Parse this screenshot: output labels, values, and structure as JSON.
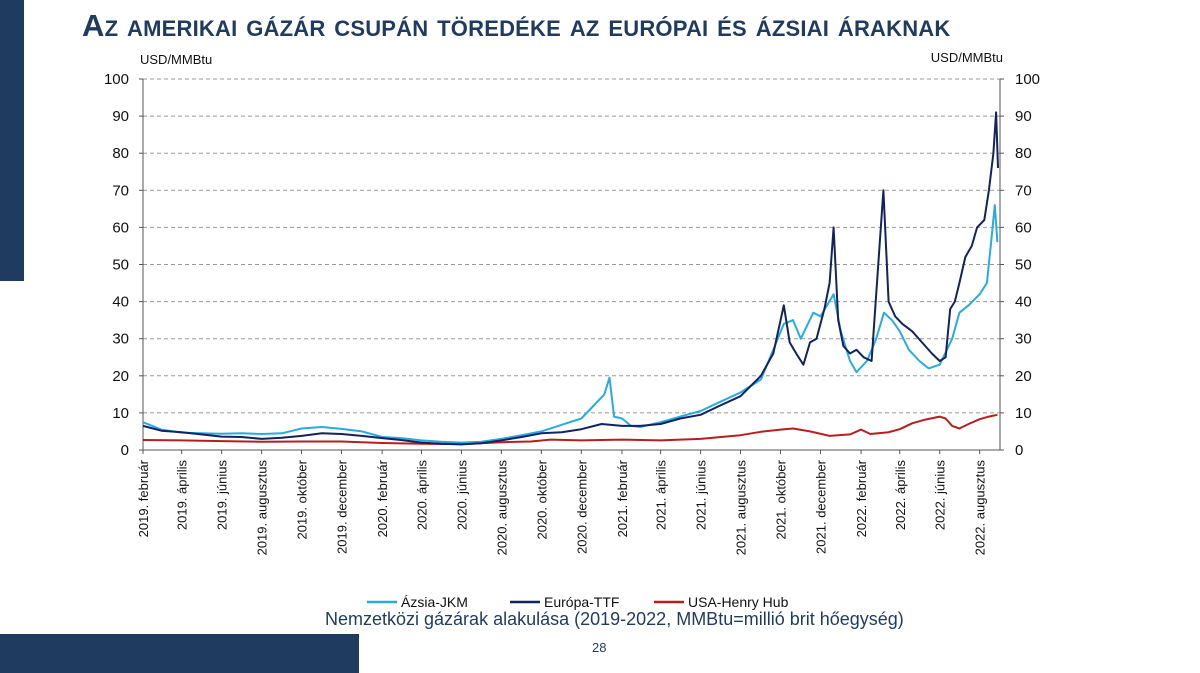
{
  "slide": {
    "title": "Az amerikai gázár csupán töredéke az európai és ázsiai áraknak",
    "caption": "Nemzetközi gázárak alakulása (2019-2022, MMBtu=millió brit hőegység)",
    "page_number": "28"
  },
  "colors": {
    "accent": "#1f3b5f",
    "jkm": "#29aae1",
    "ttf": "#12235e",
    "hh": "#b81e1e",
    "grid": "#9a9a9a"
  },
  "chart_data": {
    "type": "line",
    "ylabel_left": "USD/MMBtu",
    "ylabel_right": "USD/MMBtu",
    "ylim": [
      0,
      100
    ],
    "yticks": [
      0,
      10,
      20,
      30,
      40,
      50,
      60,
      70,
      80,
      90,
      100
    ],
    "grid": true,
    "legend_position": "bottom",
    "x_start": "2019-02-01",
    "x_end": "2022-09-01",
    "xtick_labels": [
      {
        "date": "2019-02-01",
        "label": "2019. február"
      },
      {
        "date": "2019-04-01",
        "label": "2019. április"
      },
      {
        "date": "2019-06-01",
        "label": "2019. június"
      },
      {
        "date": "2019-08-01",
        "label": "2019. augusztus"
      },
      {
        "date": "2019-10-01",
        "label": "2019. október"
      },
      {
        "date": "2019-12-01",
        "label": "2019. december"
      },
      {
        "date": "2020-02-01",
        "label": "2020. február"
      },
      {
        "date": "2020-04-01",
        "label": "2020. április"
      },
      {
        "date": "2020-06-01",
        "label": "2020. június"
      },
      {
        "date": "2020-08-01",
        "label": "2020. augusztus"
      },
      {
        "date": "2020-10-01",
        "label": "2020. október"
      },
      {
        "date": "2020-12-01",
        "label": "2020. december"
      },
      {
        "date": "2021-02-01",
        "label": "2021. február"
      },
      {
        "date": "2021-04-01",
        "label": "2021. április"
      },
      {
        "date": "2021-06-01",
        "label": "2021. június"
      },
      {
        "date": "2021-08-01",
        "label": "2021. augusztus"
      },
      {
        "date": "2021-10-01",
        "label": "2021. október"
      },
      {
        "date": "2021-12-01",
        "label": "2021. december"
      },
      {
        "date": "2022-02-01",
        "label": "2022. február"
      },
      {
        "date": "2022-04-01",
        "label": "2022. április"
      },
      {
        "date": "2022-06-01",
        "label": "2022. június"
      },
      {
        "date": "2022-08-01",
        "label": "2022. augusztus"
      }
    ],
    "series": [
      {
        "name": "Ázsia-JKM",
        "color": "#29aae1",
        "points": [
          [
            "2019-02-01",
            7.5
          ],
          [
            "2019-03-01",
            5.5
          ],
          [
            "2019-04-01",
            4.7
          ],
          [
            "2019-05-01",
            4.5
          ],
          [
            "2019-06-01",
            4.4
          ],
          [
            "2019-07-01",
            4.5
          ],
          [
            "2019-08-01",
            4.3
          ],
          [
            "2019-09-01",
            4.5
          ],
          [
            "2019-10-01",
            5.8
          ],
          [
            "2019-11-01",
            6.2
          ],
          [
            "2019-12-01",
            5.7
          ],
          [
            "2020-01-01",
            5.0
          ],
          [
            "2020-02-01",
            3.5
          ],
          [
            "2020-03-01",
            3.2
          ],
          [
            "2020-04-01",
            2.6
          ],
          [
            "2020-05-01",
            2.2
          ],
          [
            "2020-06-01",
            2.0
          ],
          [
            "2020-07-01",
            2.2
          ],
          [
            "2020-08-01",
            3.0
          ],
          [
            "2020-09-01",
            4.0
          ],
          [
            "2020-10-01",
            5.0
          ],
          [
            "2020-11-01",
            6.8
          ],
          [
            "2020-12-01",
            8.5
          ],
          [
            "2020-12-20",
            12.0
          ],
          [
            "2021-01-05",
            15.0
          ],
          [
            "2021-01-13",
            19.5
          ],
          [
            "2021-01-20",
            9.0
          ],
          [
            "2021-02-01",
            8.5
          ],
          [
            "2021-02-15",
            6.5
          ],
          [
            "2021-03-01",
            6.2
          ],
          [
            "2021-04-01",
            7.5
          ],
          [
            "2021-05-01",
            9.0
          ],
          [
            "2021-06-01",
            10.5
          ],
          [
            "2021-07-01",
            13.0
          ],
          [
            "2021-08-01",
            15.5
          ],
          [
            "2021-09-01",
            19.0
          ],
          [
            "2021-09-20",
            27.0
          ],
          [
            "2021-10-06",
            34.0
          ],
          [
            "2021-10-20",
            35.0
          ],
          [
            "2021-11-01",
            30.0
          ],
          [
            "2021-11-20",
            37.0
          ],
          [
            "2021-12-01",
            36.0
          ],
          [
            "2021-12-21",
            42.0
          ],
          [
            "2022-01-01",
            32.0
          ],
          [
            "2022-01-15",
            24.0
          ],
          [
            "2022-01-25",
            21.0
          ],
          [
            "2022-02-10",
            24.0
          ],
          [
            "2022-02-24",
            30.0
          ],
          [
            "2022-03-08",
            37.0
          ],
          [
            "2022-03-20",
            35.0
          ],
          [
            "2022-04-01",
            32.0
          ],
          [
            "2022-04-15",
            27.0
          ],
          [
            "2022-05-01",
            24.0
          ],
          [
            "2022-05-15",
            22.0
          ],
          [
            "2022-06-01",
            23.0
          ],
          [
            "2022-06-20",
            30.0
          ],
          [
            "2022-07-01",
            37.0
          ],
          [
            "2022-07-15",
            39.0
          ],
          [
            "2022-08-01",
            42.0
          ],
          [
            "2022-08-12",
            45.0
          ],
          [
            "2022-08-19",
            57.0
          ],
          [
            "2022-08-24",
            66.0
          ],
          [
            "2022-08-28",
            56.0
          ]
        ]
      },
      {
        "name": "Európa-TTF",
        "color": "#12235e",
        "points": [
          [
            "2019-02-01",
            6.5
          ],
          [
            "2019-03-01",
            5.2
          ],
          [
            "2019-04-01",
            4.8
          ],
          [
            "2019-05-01",
            4.2
          ],
          [
            "2019-06-01",
            3.6
          ],
          [
            "2019-07-01",
            3.5
          ],
          [
            "2019-08-01",
            3.0
          ],
          [
            "2019-09-01",
            3.3
          ],
          [
            "2019-10-01",
            3.8
          ],
          [
            "2019-11-01",
            4.5
          ],
          [
            "2019-12-01",
            4.3
          ],
          [
            "2020-01-01",
            3.8
          ],
          [
            "2020-02-01",
            3.2
          ],
          [
            "2020-03-01",
            2.7
          ],
          [
            "2020-04-01",
            2.0
          ],
          [
            "2020-05-01",
            1.7
          ],
          [
            "2020-06-01",
            1.5
          ],
          [
            "2020-07-01",
            1.8
          ],
          [
            "2020-08-01",
            2.6
          ],
          [
            "2020-09-01",
            3.5
          ],
          [
            "2020-10-01",
            4.5
          ],
          [
            "2020-11-01",
            4.8
          ],
          [
            "2020-12-01",
            5.6
          ],
          [
            "2021-01-01",
            7.0
          ],
          [
            "2021-02-01",
            6.5
          ],
          [
            "2021-03-01",
            6.5
          ],
          [
            "2021-04-01",
            7.0
          ],
          [
            "2021-05-01",
            8.5
          ],
          [
            "2021-06-01",
            9.5
          ],
          [
            "2021-07-01",
            12.0
          ],
          [
            "2021-08-01",
            14.5
          ],
          [
            "2021-09-01",
            20.0
          ],
          [
            "2021-09-20",
            26.0
          ],
          [
            "2021-10-06",
            39.0
          ],
          [
            "2021-10-15",
            29.0
          ],
          [
            "2021-10-25",
            26.0
          ],
          [
            "2021-11-05",
            23.0
          ],
          [
            "2021-11-15",
            29.0
          ],
          [
            "2021-11-25",
            30.0
          ],
          [
            "2021-12-07",
            38.0
          ],
          [
            "2021-12-15",
            45.0
          ],
          [
            "2021-12-21",
            60.0
          ],
          [
            "2021-12-28",
            35.0
          ],
          [
            "2022-01-05",
            28.0
          ],
          [
            "2022-01-15",
            26.0
          ],
          [
            "2022-01-25",
            27.0
          ],
          [
            "2022-02-05",
            25.0
          ],
          [
            "2022-02-17",
            24.0
          ],
          [
            "2022-02-24",
            42.0
          ],
          [
            "2022-03-07",
            70.0
          ],
          [
            "2022-03-15",
            40.0
          ],
          [
            "2022-03-25",
            36.0
          ],
          [
            "2022-04-05",
            34.0
          ],
          [
            "2022-04-20",
            32.0
          ],
          [
            "2022-05-05",
            29.0
          ],
          [
            "2022-05-20",
            26.0
          ],
          [
            "2022-06-01",
            24.0
          ],
          [
            "2022-06-10",
            25.0
          ],
          [
            "2022-06-17",
            38.0
          ],
          [
            "2022-06-24",
            40.0
          ],
          [
            "2022-07-01",
            45.0
          ],
          [
            "2022-07-10",
            52.0
          ],
          [
            "2022-07-20",
            55.0
          ],
          [
            "2022-07-28",
            60.0
          ],
          [
            "2022-08-08",
            62.0
          ],
          [
            "2022-08-15",
            70.0
          ],
          [
            "2022-08-22",
            80.0
          ],
          [
            "2022-08-26",
            91.0
          ],
          [
            "2022-08-29",
            76.0
          ]
        ]
      },
      {
        "name": "USA-Henry Hub",
        "color": "#b81e1e",
        "points": [
          [
            "2019-02-01",
            2.7
          ],
          [
            "2019-04-01",
            2.6
          ],
          [
            "2019-06-01",
            2.4
          ],
          [
            "2019-08-01",
            2.2
          ],
          [
            "2019-10-01",
            2.3
          ],
          [
            "2019-12-01",
            2.3
          ],
          [
            "2020-02-01",
            1.9
          ],
          [
            "2020-04-01",
            1.7
          ],
          [
            "2020-06-01",
            1.6
          ],
          [
            "2020-08-01",
            2.1
          ],
          [
            "2020-09-15",
            2.3
          ],
          [
            "2020-10-15",
            2.8
          ],
          [
            "2020-12-01",
            2.6
          ],
          [
            "2021-02-01",
            2.8
          ],
          [
            "2021-04-01",
            2.6
          ],
          [
            "2021-06-01",
            3.0
          ],
          [
            "2021-08-01",
            4.0
          ],
          [
            "2021-09-01",
            4.9
          ],
          [
            "2021-10-01",
            5.5
          ],
          [
            "2021-10-20",
            5.8
          ],
          [
            "2021-11-15",
            5.0
          ],
          [
            "2021-12-15",
            3.8
          ],
          [
            "2022-01-15",
            4.2
          ],
          [
            "2022-02-01",
            5.5
          ],
          [
            "2022-02-15",
            4.3
          ],
          [
            "2022-03-15",
            4.8
          ],
          [
            "2022-04-01",
            5.6
          ],
          [
            "2022-04-20",
            7.2
          ],
          [
            "2022-05-10",
            8.2
          ],
          [
            "2022-06-01",
            9.0
          ],
          [
            "2022-06-10",
            8.5
          ],
          [
            "2022-06-20",
            6.5
          ],
          [
            "2022-07-01",
            5.8
          ],
          [
            "2022-07-15",
            7.0
          ],
          [
            "2022-08-01",
            8.3
          ],
          [
            "2022-08-15",
            9.0
          ],
          [
            "2022-08-28",
            9.5
          ]
        ]
      }
    ]
  }
}
